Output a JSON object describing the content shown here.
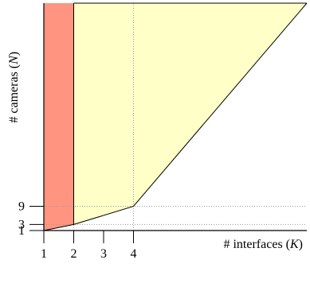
{
  "chart_data": {
    "type": "area",
    "title": "",
    "xlabel_prefix": "# interfaces (",
    "xlabel_var": "K",
    "xlabel_suffix": ")",
    "ylabel_prefix": "# cameras (",
    "ylabel_var": "N",
    "ylabel_suffix": ")",
    "xlim": [
      1,
      9.8
    ],
    "ylim": [
      1,
      76
    ],
    "x_ticks": [
      1,
      2,
      3,
      4
    ],
    "x_tick_labels": [
      "1",
      "2",
      "3",
      "4"
    ],
    "y_ticks": [
      1,
      3,
      9
    ],
    "y_tick_labels": [
      "1",
      "3",
      "9"
    ],
    "boundary_curve": {
      "x": [
        1,
        2,
        4,
        9.8
      ],
      "y": [
        1,
        3,
        9,
        76
      ]
    },
    "regions": [
      {
        "id": "K_below_2",
        "x_range": [
          1,
          2
        ],
        "color": "#ff9480"
      },
      {
        "id": "K_2_and_above",
        "x_range": [
          2,
          9.8
        ],
        "color": "#ffffc8"
      }
    ],
    "grid": "dotted lines at x=2, x=4, y=3, y=9"
  }
}
